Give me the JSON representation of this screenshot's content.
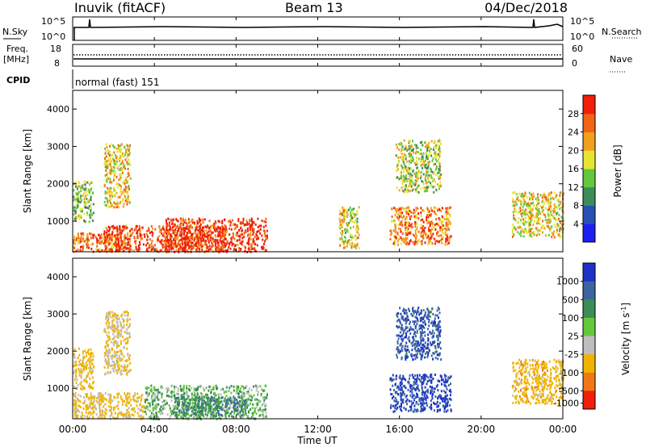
{
  "header": {
    "title": "Inuvik (fitACF)",
    "beam": "Beam 13",
    "date": "04/Dec/2018"
  },
  "top_panels": {
    "nsky_label": "N.Sky",
    "nsky_ticks": [
      "10^5",
      "10^0"
    ],
    "nsearch_label": "N.Search",
    "nsearch_ticks": [
      "10^5",
      "10^0"
    ],
    "freq_label": "Freq.",
    "freq_unit": "[MHz]",
    "freq_ticks": [
      "18",
      "8"
    ],
    "nave_label": "Nave",
    "nave_ticks": [
      "60",
      "0"
    ],
    "cpid_label": "CPID",
    "cpid_text": "normal (fast) 151"
  },
  "x_axis": {
    "label": "Time UT",
    "ticks": [
      "00:00",
      "04:00",
      "08:00",
      "12:00",
      "16:00",
      "20:00",
      "00:00"
    ]
  },
  "chart_data": [
    {
      "type": "heatmap",
      "name": "power",
      "ylabel": "Slant Range [km]",
      "y_ticks": [
        1000,
        2000,
        3000,
        4000
      ],
      "xlim": [
        0,
        24
      ],
      "ylim": [
        180,
        4500
      ],
      "colorbar": {
        "label": "Power [dB]",
        "ticks": [
          "4",
          "8",
          "12",
          "16",
          "20",
          "24",
          "28"
        ],
        "range": [
          0,
          30
        ],
        "colors": [
          "#1e1ef0",
          "#2a50b4",
          "#3c8c5a",
          "#64c83c",
          "#e6e632",
          "#f0a01e",
          "#f06414",
          "#f01e0a"
        ]
      },
      "scatter_regions": [
        {
          "x": [
            0.0,
            2.8
          ],
          "y": [
            200,
            700
          ],
          "value": 24
        },
        {
          "x": [
            1.5,
            7.5
          ],
          "y": [
            200,
            900
          ],
          "value": 27
        },
        {
          "x": [
            4.5,
            9.5
          ],
          "y": [
            200,
            1100
          ],
          "value": 28
        },
        {
          "x": [
            0.0,
            1.0
          ],
          "y": [
            1000,
            2100
          ],
          "value": 14
        },
        {
          "x": [
            1.5,
            2.8
          ],
          "y": [
            1400,
            3100
          ],
          "value": 19
        },
        {
          "x": [
            13.0,
            14.0
          ],
          "y": [
            300,
            1400
          ],
          "value": 17
        },
        {
          "x": [
            15.5,
            18.5
          ],
          "y": [
            400,
            1400
          ],
          "value": 23
        },
        {
          "x": [
            15.8,
            18.0
          ],
          "y": [
            1800,
            3200
          ],
          "value": 15
        },
        {
          "x": [
            21.5,
            24.0
          ],
          "y": [
            600,
            1800
          ],
          "value": 18
        }
      ]
    },
    {
      "type": "heatmap",
      "name": "velocity",
      "ylabel": "Slant Range [km]",
      "y_ticks": [
        1000,
        2000,
        3000,
        4000
      ],
      "xlim": [
        0,
        24
      ],
      "ylim": [
        180,
        4500
      ],
      "colorbar": {
        "label": "Velocity [m s^-1]",
        "ticks": [
          "1000",
          "500",
          "100",
          "25",
          "-25",
          "-100",
          "-500",
          "-1000"
        ],
        "colors": [
          "#1e32c8",
          "#3c64a0",
          "#3c8c5a",
          "#64c83c",
          "#bebebe",
          "#f0b400",
          "#f07814",
          "#f01e0a"
        ]
      },
      "scatter_regions": [
        {
          "x": [
            0.0,
            3.5
          ],
          "y": [
            200,
            900
          ],
          "value": -150
        },
        {
          "x": [
            3.5,
            9.5
          ],
          "y": [
            200,
            1100
          ],
          "value": 15
        },
        {
          "x": [
            5.0,
            8.5
          ],
          "y": [
            300,
            800
          ],
          "value": 80
        },
        {
          "x": [
            0.0,
            1.0
          ],
          "y": [
            1000,
            2100
          ],
          "value": -200
        },
        {
          "x": [
            1.5,
            2.8
          ],
          "y": [
            1400,
            3100
          ],
          "value": -120
        },
        {
          "x": [
            15.5,
            18.5
          ],
          "y": [
            400,
            1400
          ],
          "value": 600
        },
        {
          "x": [
            15.8,
            18.0
          ],
          "y": [
            1800,
            3200
          ],
          "value": 400
        },
        {
          "x": [
            21.5,
            24.0
          ],
          "y": [
            600,
            1800
          ],
          "value": -300
        }
      ]
    }
  ]
}
